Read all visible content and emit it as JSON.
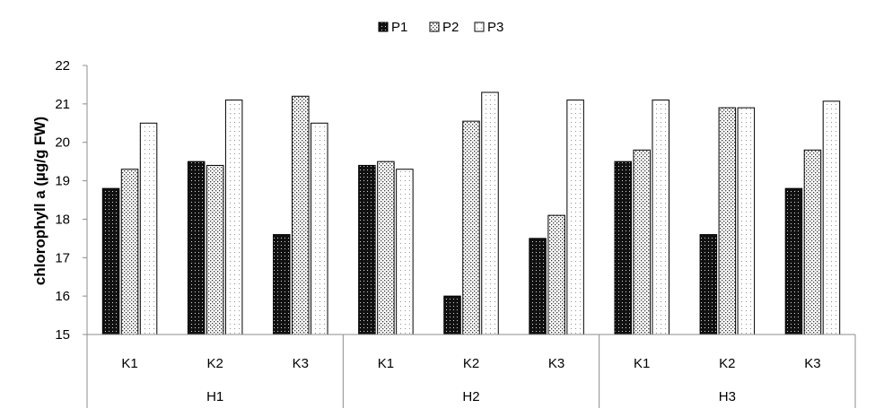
{
  "chart_data": {
    "type": "bar",
    "title": "",
    "xlabel": "",
    "ylabel": "chlorophyll a (µg/g FW)",
    "ylim": [
      15,
      22
    ],
    "yticks": [
      "15",
      "16",
      "17",
      "18",
      "19",
      "20",
      "21",
      "22"
    ],
    "grid": false,
    "legend_position": "top-center",
    "groups": [
      {
        "label": "H1",
        "subcategories": [
          "K1",
          "K2",
          "K3"
        ]
      },
      {
        "label": "H2",
        "subcategories": [
          "K1",
          "K2",
          "K3"
        ]
      },
      {
        "label": "H3",
        "subcategories": [
          "K1",
          "K2",
          "K3"
        ]
      }
    ],
    "series": [
      {
        "name": "P1",
        "pattern": "dense-dots",
        "values": [
          18.8,
          19.5,
          17.6,
          19.4,
          16.0,
          17.5,
          19.5,
          17.6,
          18.8
        ]
      },
      {
        "name": "P2",
        "pattern": "medium-dots",
        "values": [
          19.3,
          19.4,
          21.2,
          19.5,
          20.55,
          18.1,
          19.8,
          20.9,
          19.8
        ]
      },
      {
        "name": "P3",
        "pattern": "sparse-dots",
        "values": [
          20.5,
          21.1,
          20.5,
          19.3,
          21.3,
          21.1,
          21.1,
          20.9,
          21.07
        ]
      }
    ]
  }
}
